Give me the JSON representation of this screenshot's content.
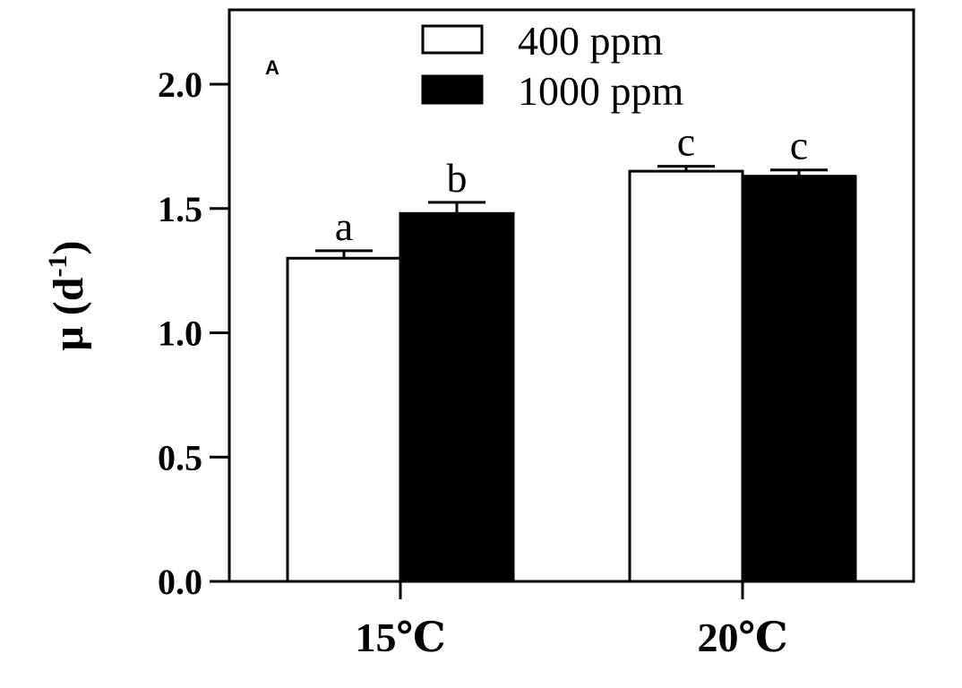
{
  "chart_data": {
    "type": "bar",
    "panel_label": "A",
    "ylabel_main": "μ (d",
    "ylabel_sup": "-1",
    "ylabel_close": ")",
    "xlabel": "",
    "ylim": [
      0,
      2.0
    ],
    "yticks": [
      "0.0",
      "0.5",
      "1.0",
      "1.5",
      "2.0"
    ],
    "categories": [
      "15℃",
      "20℃"
    ],
    "series": [
      {
        "name": "400 ppm",
        "color": "#ffffff",
        "values": [
          1.3,
          1.65
        ],
        "errors": [
          0.03,
          0.02
        ],
        "letters": [
          "a",
          "c"
        ]
      },
      {
        "name": "1000 ppm",
        "color": "#000000",
        "values": [
          1.48,
          1.63
        ],
        "errors": [
          0.045,
          0.025
        ],
        "letters": [
          "b",
          "c"
        ]
      }
    ],
    "legend_position": "top-center",
    "grid": false
  }
}
